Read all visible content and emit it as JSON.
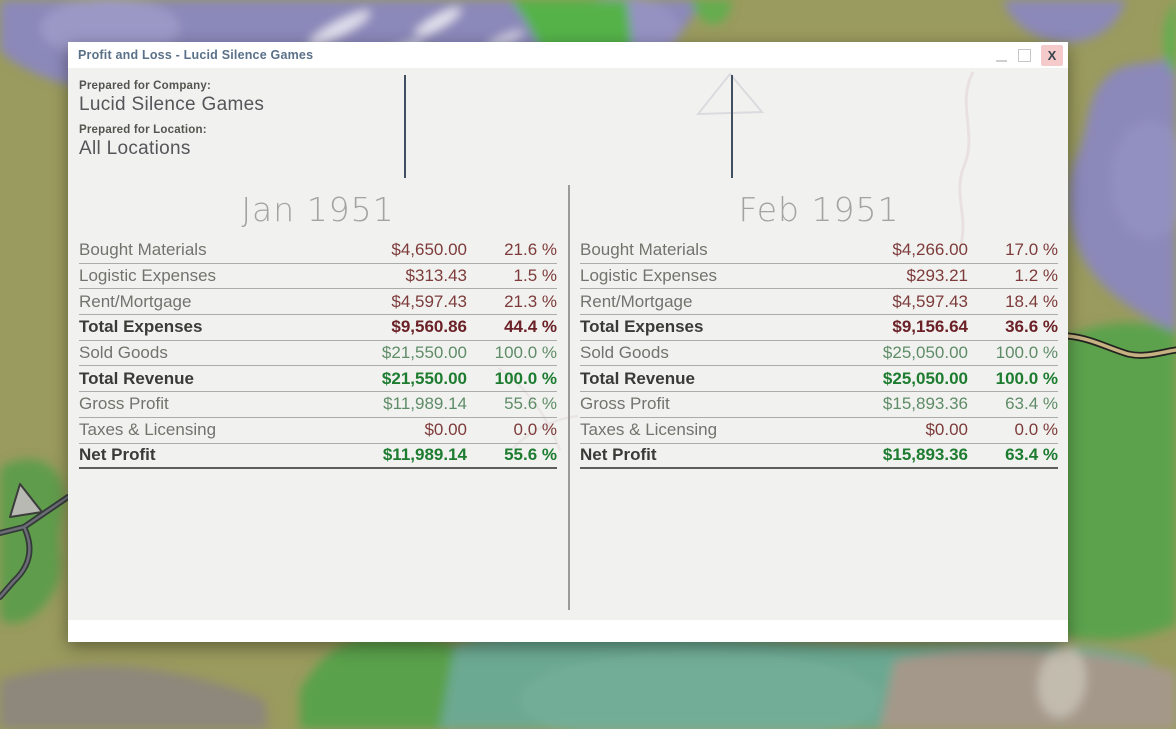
{
  "window": {
    "title": "Profit and Loss - Lucid Silence Games",
    "controls": {
      "minimize_icon": "minimize-underscore",
      "maximize_icon": "maximize-square",
      "close_label": "X"
    },
    "header": {
      "company_label": "Prepared for Company:",
      "company_value": "Lucid Silence Games",
      "location_label": "Prepared for Location:",
      "location_value": "All Locations"
    }
  },
  "columns": [
    {
      "month": "Jan 1951",
      "rows": [
        {
          "label": "Bought Materials",
          "amount": "$4,650.00",
          "percent": "21.6 %",
          "type": "expense",
          "bold": false
        },
        {
          "label": "Logistic Expenses",
          "amount": "$313.43",
          "percent": "1.5 %",
          "type": "expense",
          "bold": false
        },
        {
          "label": "Rent/Mortgage",
          "amount": "$4,597.43",
          "percent": "21.3 %",
          "type": "expense",
          "bold": false
        },
        {
          "label": "Total Expenses",
          "amount": "$9,560.86",
          "percent": "44.4 %",
          "type": "expense",
          "bold": true
        },
        {
          "label": "Sold Goods",
          "amount": "$21,550.00",
          "percent": "100.0 %",
          "type": "revenue",
          "bold": false
        },
        {
          "label": "Total Revenue",
          "amount": "$21,550.00",
          "percent": "100.0 %",
          "type": "revenue",
          "bold": true
        },
        {
          "label": "Gross Profit",
          "amount": "$11,989.14",
          "percent": "55.6 %",
          "type": "revenue",
          "bold": false
        },
        {
          "label": "Taxes & Licensing",
          "amount": "$0.00",
          "percent": "0.0 %",
          "type": "expense",
          "bold": false
        },
        {
          "label": "Net Profit",
          "amount": "$11,989.14",
          "percent": "55.6 %",
          "type": "revenue",
          "bold": true
        }
      ]
    },
    {
      "month": "Feb 1951",
      "rows": [
        {
          "label": "Bought Materials",
          "amount": "$4,266.00",
          "percent": "17.0 %",
          "type": "expense",
          "bold": false
        },
        {
          "label": "Logistic Expenses",
          "amount": "$293.21",
          "percent": "1.2 %",
          "type": "expense",
          "bold": false
        },
        {
          "label": "Rent/Mortgage",
          "amount": "$4,597.43",
          "percent": "18.4 %",
          "type": "expense",
          "bold": false
        },
        {
          "label": "Total Expenses",
          "amount": "$9,156.64",
          "percent": "36.6 %",
          "type": "expense",
          "bold": true
        },
        {
          "label": "Sold Goods",
          "amount": "$25,050.00",
          "percent": "100.0 %",
          "type": "revenue",
          "bold": false
        },
        {
          "label": "Total Revenue",
          "amount": "$25,050.00",
          "percent": "100.0 %",
          "type": "revenue",
          "bold": true
        },
        {
          "label": "Gross Profit",
          "amount": "$15,893.36",
          "percent": "63.4 %",
          "type": "revenue",
          "bold": false
        },
        {
          "label": "Taxes & Licensing",
          "amount": "$0.00",
          "percent": "0.0 %",
          "type": "expense",
          "bold": false
        },
        {
          "label": "Net Profit",
          "amount": "$15,893.36",
          "percent": "63.4 %",
          "type": "revenue",
          "bold": true
        }
      ]
    }
  ],
  "colors": {
    "expense": "#7d3b3b",
    "expense_bold": "#6b2127",
    "revenue": "#5f8c68",
    "revenue_bold": "#1e7c31",
    "title_text": "#5a7189",
    "close_button_bg": "#f5caca",
    "window_bg": "#f1f2ef",
    "map_olive": "#9a9b5e",
    "map_purple": "#8b88ba",
    "map_bright_green": "#55b24a",
    "map_teal": "#6ca992",
    "map_tan": "#a4988a",
    "map_graybrown": "#8d877b"
  }
}
